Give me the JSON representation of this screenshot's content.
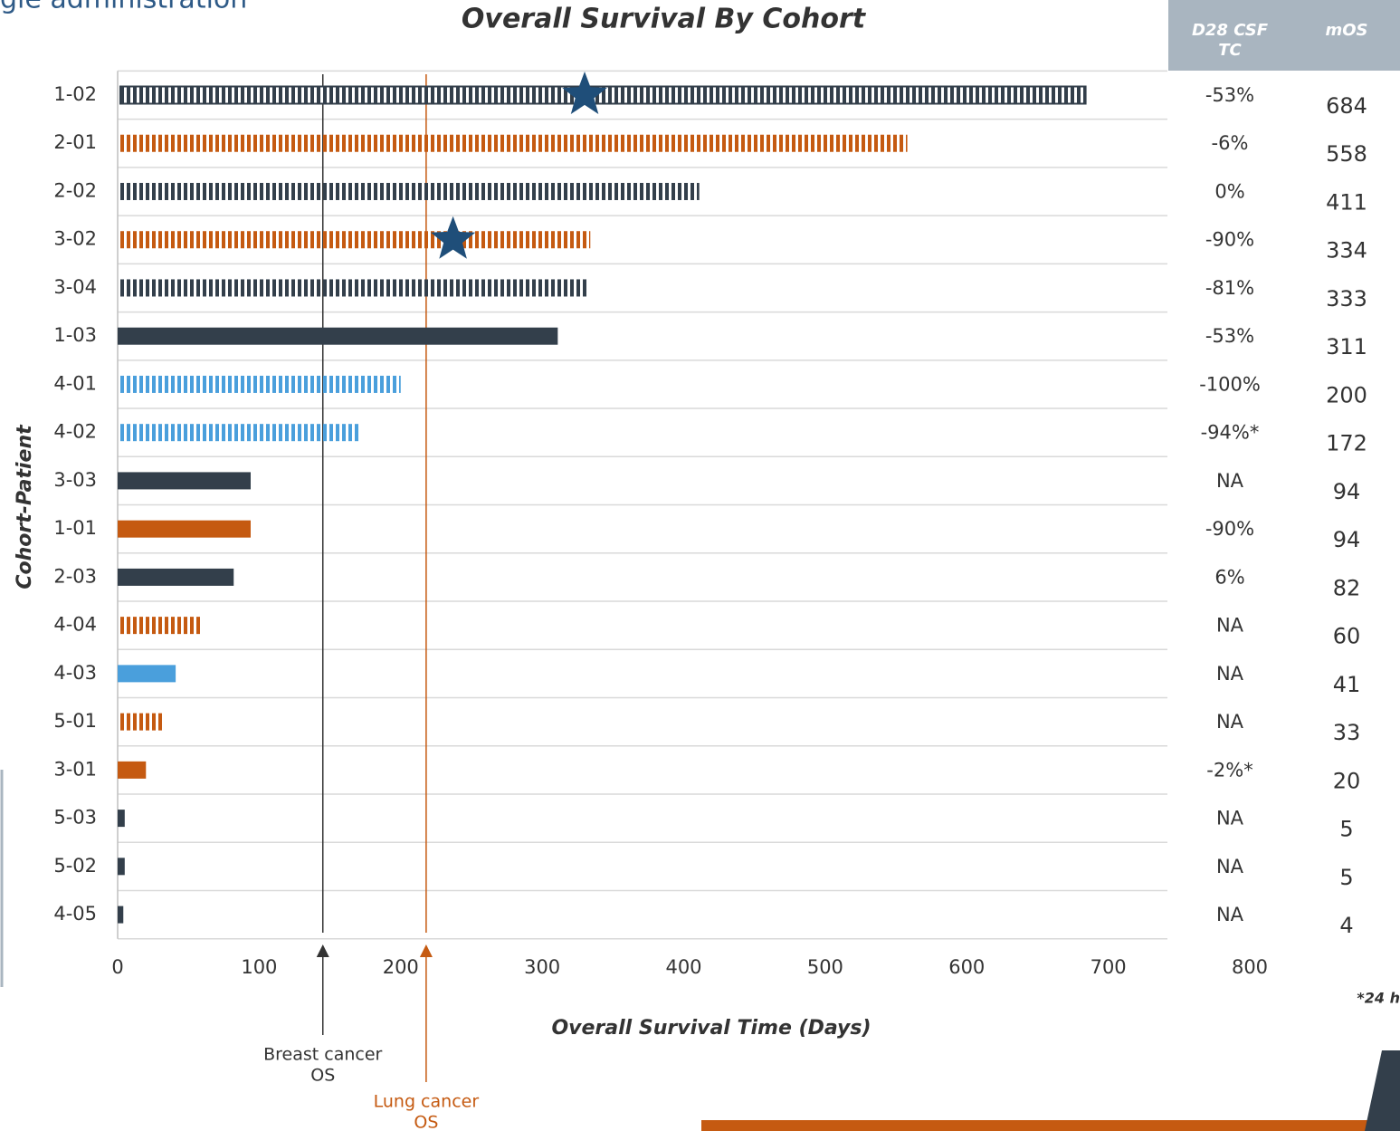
{
  "header_fragment": "gle administration",
  "footnote_fragment": "*24 h",
  "chart_data": {
    "type": "bar",
    "orientation": "horizontal",
    "title": "Overall Survival By Cohort",
    "x_label": "Overall Survival Time (Days)",
    "y_label": "Cohort-Patient",
    "categories": [
      "1-02",
      "2-01",
      "2-02",
      "3-02",
      "3-04",
      "1-03",
      "4-01",
      "4-02",
      "3-03",
      "1-01",
      "2-03",
      "4-04",
      "4-03",
      "5-01",
      "3-01",
      "5-03",
      "5-02",
      "4-05"
    ],
    "values": [
      684,
      558,
      411,
      334,
      333,
      311,
      200,
      172,
      94,
      94,
      82,
      60,
      41,
      33,
      20,
      5,
      5,
      4
    ],
    "colors": [
      "#333f4b",
      "#c55a11",
      "#333f4b",
      "#c55a11",
      "#333f4b",
      "#333f4b",
      "#4a9fdc",
      "#4a9fdc",
      "#333f4b",
      "#c55a11",
      "#333f4b",
      "#c55a11",
      "#4a9fdc",
      "#c55a11",
      "#c55a11",
      "#333f4b",
      "#333f4b",
      "#333f4b"
    ],
    "patterns": [
      "outlined-striped",
      "striped",
      "striped",
      "striped",
      "striped",
      "solid",
      "striped",
      "striped",
      "solid",
      "solid",
      "solid",
      "striped",
      "solid",
      "striped",
      "solid",
      "solid",
      "solid",
      "solid"
    ],
    "star_x": [
      330,
      null,
      null,
      237,
      null,
      null,
      null,
      null,
      null,
      null,
      null,
      null,
      null,
      null,
      null,
      null,
      null,
      null
    ],
    "star_color": "#1f4e79",
    "table_columns": [
      [
        "D28 CSF",
        "TC"
      ],
      [
        "mOS"
      ]
    ],
    "csf_tc": [
      "-53%",
      "-6%",
      "0%",
      "-90%",
      "-81%",
      "-53%",
      "-100%",
      "-94%*",
      "NA",
      "-90%",
      "6%",
      "NA",
      "NA",
      "NA",
      "-2%*",
      "NA",
      "NA",
      "NA"
    ],
    "reference_lines": [
      {
        "label": [
          "Breast cancer",
          "OS"
        ],
        "x": 145,
        "color": "#333333"
      },
      {
        "label": [
          "Lung cancer",
          "OS"
        ],
        "x": 218,
        "color": "#c55a11"
      }
    ],
    "xlim": [
      0,
      800
    ],
    "xticks": [
      0,
      100,
      200,
      300,
      400,
      500,
      600,
      700,
      800
    ],
    "grid": true
  }
}
